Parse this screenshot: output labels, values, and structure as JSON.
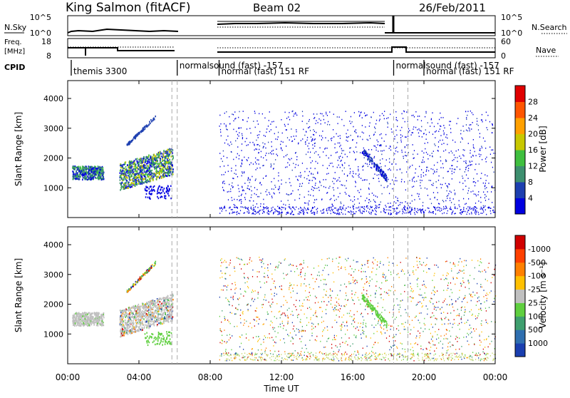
{
  "header": {
    "station": "King Salmon (fitACF)",
    "beam": "Beam 02",
    "date": "26/Feb/2011"
  },
  "panels": {
    "nsky": {
      "label": "N.Sky",
      "ticks": [
        "10^5",
        "10^0"
      ]
    },
    "nsearch": {
      "label": "N.Search",
      "ticks": [
        "10^5",
        "10^0"
      ]
    },
    "freq": {
      "label_lines": [
        "Freq.",
        "[MHz]"
      ],
      "ticks": [
        "18",
        "8"
      ]
    },
    "nave": {
      "label": "Nave",
      "ticks": [
        "60",
        "0"
      ]
    },
    "cpid": {
      "label": "CPID"
    }
  },
  "modes": [
    {
      "label": "themis 3300",
      "start_h": 0.2
    },
    {
      "label": "normalsound (fast) -157",
      "start_h": 6.15
    },
    {
      "label": "normal (fast) 151 RF",
      "start_h": 8.5
    },
    {
      "label": "normalsound (fast) -157",
      "start_h": 18.3
    },
    {
      "label": "normal (fast) 151 RF",
      "start_h": 20.0
    }
  ],
  "chart_data": [
    {
      "type": "heatmap",
      "name": "power",
      "ylabel": "Slant Range [km]",
      "ylim": [
        0,
        4600
      ],
      "yticks": [
        1000,
        2000,
        3000,
        4000
      ],
      "xlim": [
        0,
        24
      ],
      "colorbar": {
        "label": "Power [dB]",
        "ticks": [
          "4",
          "8",
          "12",
          "16",
          "20",
          "24",
          "28"
        ],
        "colors": [
          "#0000e0",
          "#1d3fb0",
          "#3d8f6f",
          "#3fbf3f",
          "#c8c800",
          "#ffa000",
          "#ff5500",
          "#e00000"
        ]
      }
    },
    {
      "type": "heatmap",
      "name": "velocity",
      "ylabel": "Slant Range [km]",
      "ylim": [
        0,
        4600
      ],
      "yticks": [
        1000,
        2000,
        3000,
        4000
      ],
      "xlim": [
        0,
        24
      ],
      "xlabel": "Time UT",
      "xticks": [
        "00:00",
        "04:00",
        "08:00",
        "12:00",
        "16:00",
        "20:00",
        "00:00"
      ],
      "colorbar": {
        "label": "Velocity [m s⁻¹]",
        "ticks": [
          "1000",
          "500",
          "100",
          "25",
          "-25",
          "-100",
          "-500",
          "-1000"
        ],
        "colors": [
          "#1a3fb0",
          "#2f6fb0",
          "#3f9f6f",
          "#5fcf3f",
          "#c0c0c0",
          "#ffc000",
          "#ff8000",
          "#ff4000",
          "#d00000"
        ]
      }
    }
  ],
  "dashed_lines_h": [
    5.85,
    6.15,
    18.3,
    19.1
  ]
}
